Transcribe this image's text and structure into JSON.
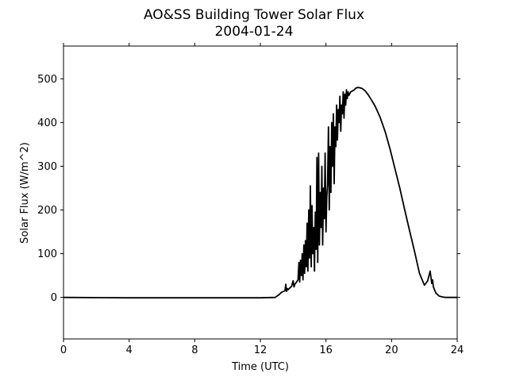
{
  "chart_data": {
    "type": "line",
    "title": "AO&SS Building Tower Solar Flux",
    "subtitle": "2004-01-24",
    "xlabel": "Time (UTC)",
    "ylabel": "Solar Flux (W/m^2)",
    "xlim": [
      0,
      24
    ],
    "ylim": [
      -95,
      575
    ],
    "xticks": [
      0,
      4,
      8,
      12,
      16,
      20,
      24
    ],
    "yticks": [
      0,
      100,
      200,
      300,
      400,
      500
    ],
    "grid": false,
    "line_color": "#000000",
    "series": [
      {
        "x": [
          0,
          4,
          8,
          12,
          12.9,
          13.1,
          13.3,
          13.5,
          13.55,
          13.6,
          13.65,
          13.7,
          13.8,
          13.9,
          14.0,
          14.05,
          14.1,
          14.2,
          14.3,
          14.35,
          14.4,
          14.45,
          14.5,
          14.55,
          14.6,
          14.65,
          14.7,
          14.75,
          14.8,
          14.85,
          14.9,
          14.95,
          15.0,
          15.05,
          15.1,
          15.15,
          15.2,
          15.25,
          15.3,
          15.35,
          15.4,
          15.45,
          15.5,
          15.55,
          15.6,
          15.65,
          15.7,
          15.75,
          15.8,
          15.85,
          15.9,
          15.95,
          16.0,
          16.05,
          16.1,
          16.15,
          16.2,
          16.25,
          16.3,
          16.35,
          16.4,
          16.45,
          16.5,
          16.55,
          16.6,
          16.65,
          16.7,
          16.75,
          16.8,
          16.85,
          16.9,
          16.95,
          17.0,
          17.05,
          17.1,
          17.15,
          17.2,
          17.25,
          17.3,
          17.35,
          17.4,
          17.5,
          17.6,
          17.7,
          17.8,
          17.9,
          18.0,
          18.2,
          18.4,
          18.6,
          18.8,
          19.0,
          19.3,
          19.6,
          19.9,
          20.2,
          20.5,
          20.8,
          21.1,
          21.4,
          21.7,
          22.0,
          22.2,
          22.35,
          22.45,
          22.5,
          22.55,
          22.7,
          22.9,
          23.1,
          23.3,
          23.6,
          24.0
        ],
        "y": [
          0,
          -1,
          -1,
          -1,
          0,
          5,
          12,
          15,
          30,
          14,
          20,
          18,
          22,
          25,
          38,
          24,
          30,
          35,
          40,
          80,
          35,
          85,
          50,
          100,
          40,
          120,
          55,
          130,
          70,
          170,
          60,
          200,
          90,
          255,
          70,
          210,
          100,
          160,
          60,
          195,
          110,
          320,
          80,
          330,
          120,
          240,
          160,
          300,
          120,
          250,
          180,
          330,
          150,
          230,
          260,
          390,
          200,
          345,
          240,
          400,
          300,
          420,
          260,
          390,
          345,
          440,
          360,
          430,
          400,
          460,
          380,
          440,
          420,
          470,
          410,
          465,
          440,
          475,
          455,
          470,
          462,
          470,
          472,
          474,
          478,
          480,
          480,
          478,
          472,
          462,
          450,
          437,
          412,
          380,
          340,
          295,
          250,
          200,
          152,
          105,
          55,
          28,
          38,
          60,
          32,
          40,
          24,
          10,
          3,
          1,
          0,
          0,
          0
        ]
      }
    ]
  }
}
